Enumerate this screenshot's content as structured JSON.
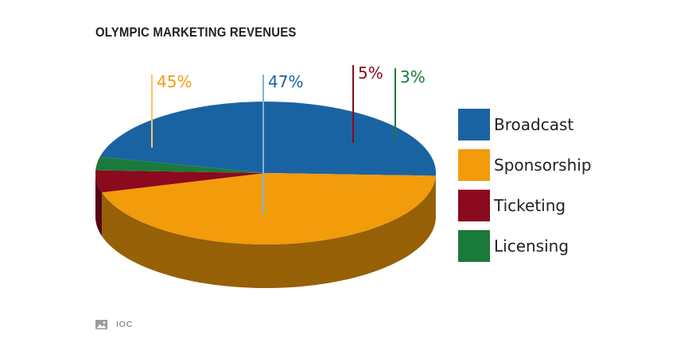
{
  "title": "OLYMPIC MARKETING REVENUES",
  "source": {
    "label": "IOC",
    "icon": "image-icon"
  },
  "chart_data": {
    "type": "pie",
    "title": "OLYMPIC MARKETING REVENUES",
    "slices": [
      {
        "name": "Broadcast",
        "value": 47,
        "label": "47%",
        "color": "#1a63a3"
      },
      {
        "name": "Sponsorship",
        "value": 45,
        "label": "45%",
        "color": "#f29b0b"
      },
      {
        "name": "Ticketing",
        "value": 5,
        "label": "5%",
        "color": "#8b0a1e"
      },
      {
        "name": "Licensing",
        "value": 3,
        "label": "3%",
        "color": "#1a7a3a"
      }
    ],
    "legend_position": "right",
    "style": "3d"
  }
}
